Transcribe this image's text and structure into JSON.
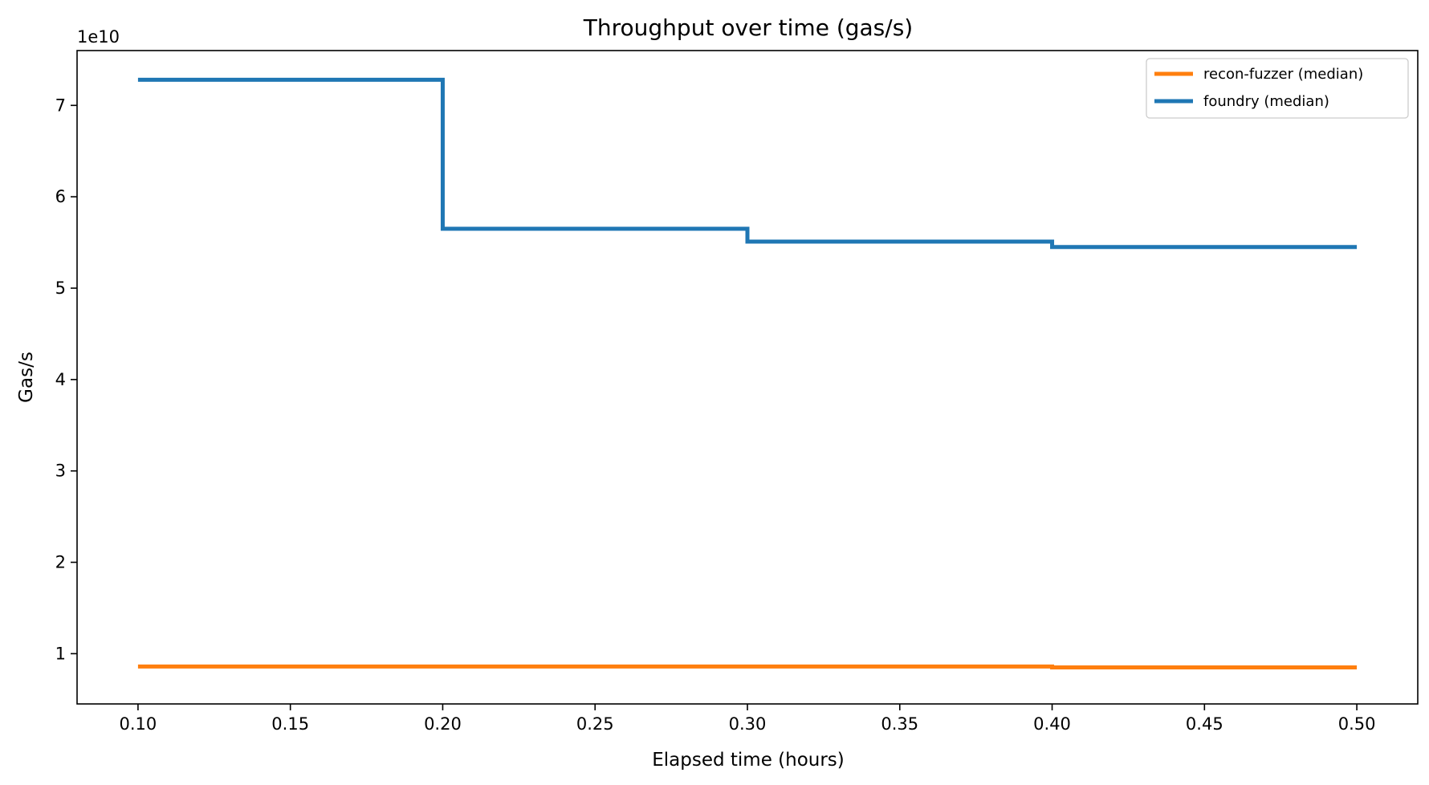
{
  "chart_data": {
    "type": "line",
    "drawstyle": "steps-post",
    "title": "Throughput over time (gas/s)",
    "xlabel": "Elapsed time (hours)",
    "ylabel": "Gas/s",
    "y_offset_label": "1e10",
    "y_scale_exponent": 10,
    "xlim": [
      0.08,
      0.52
    ],
    "ylim": [
      0.45,
      7.6
    ],
    "x_ticks": [
      "0.10",
      "0.15",
      "0.20",
      "0.25",
      "0.30",
      "0.35",
      "0.40",
      "0.45",
      "0.50"
    ],
    "y_ticks": [
      "1",
      "2",
      "3",
      "4",
      "5",
      "6",
      "7"
    ],
    "grid": false,
    "legend_position": "top-right",
    "series": [
      {
        "name": "recon-fuzzer (median)",
        "color": "#ff7f0e",
        "x": [
          0.1,
          0.2,
          0.3,
          0.4,
          0.5
        ],
        "y": [
          0.86,
          0.86,
          0.86,
          0.85,
          0.85
        ]
      },
      {
        "name": "foundry (median)",
        "color": "#1f77b4",
        "x": [
          0.1,
          0.2,
          0.3,
          0.4,
          0.5
        ],
        "y": [
          7.28,
          5.65,
          5.51,
          5.45,
          5.45
        ]
      }
    ]
  }
}
